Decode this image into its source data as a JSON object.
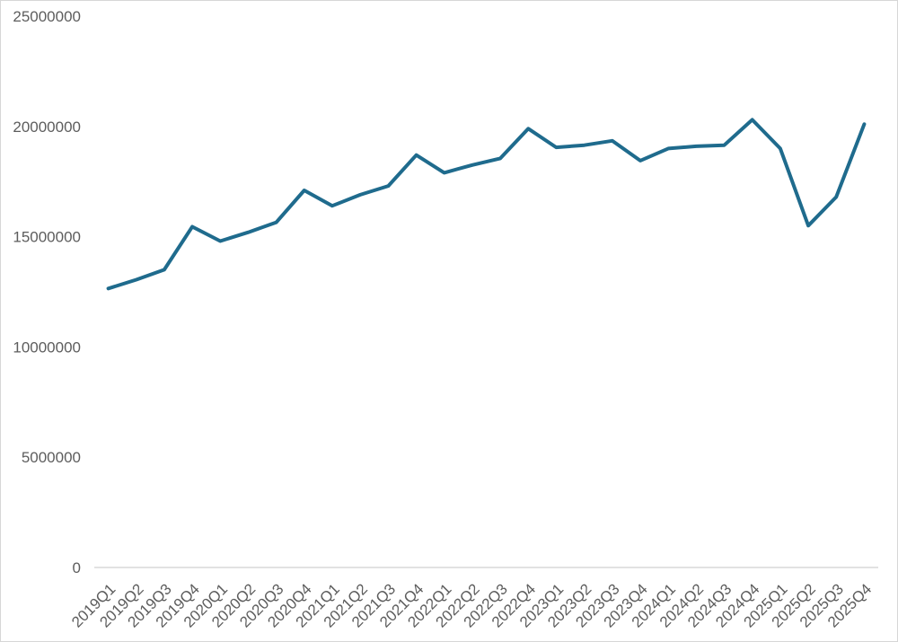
{
  "chart_data": {
    "type": "line",
    "title": "",
    "xlabel": "",
    "ylabel": "",
    "categories": [
      "2019Q1",
      "2019Q2",
      "2019Q3",
      "2019Q4",
      "2020Q1",
      "2020Q2",
      "2020Q3",
      "2020Q4",
      "2021Q1",
      "2021Q2",
      "2021Q3",
      "2021Q4",
      "2022Q1",
      "2022Q2",
      "2022Q3",
      "2022Q4",
      "2023Q1",
      "2023Q2",
      "2023Q3",
      "2023Q4",
      "2024Q1",
      "2024Q2",
      "2024Q3",
      "2024Q4",
      "2025Q1",
      "2025Q2",
      "2025Q3",
      "2025Q4"
    ],
    "series": [
      {
        "name": "series-1",
        "color": "#1f6b8d",
        "values": [
          12650000,
          13050000,
          13500000,
          15450000,
          14800000,
          15200000,
          15650000,
          17100000,
          16400000,
          16900000,
          17300000,
          18700000,
          17900000,
          18250000,
          18550000,
          19900000,
          19050000,
          19150000,
          19350000,
          18450000,
          19000000,
          19100000,
          19150000,
          20300000,
          19000000,
          15500000,
          16800000,
          20100000
        ]
      }
    ],
    "ylim": [
      0,
      25000000
    ],
    "y_ticks": [
      0,
      5000000,
      10000000,
      15000000,
      20000000,
      25000000
    ],
    "y_tick_labels": [
      "0",
      "5000000",
      "10000000",
      "15000000",
      "20000000",
      "25000000"
    ],
    "x_tick_rotation_deg": -45,
    "grid": "off",
    "legend": "none",
    "colors": {
      "line": "#1f6b8d",
      "axis_line": "#d9d9d9",
      "tick_label": "#5d5d5d",
      "background": "#ffffff",
      "frame_border": "#d7d7d7"
    }
  }
}
